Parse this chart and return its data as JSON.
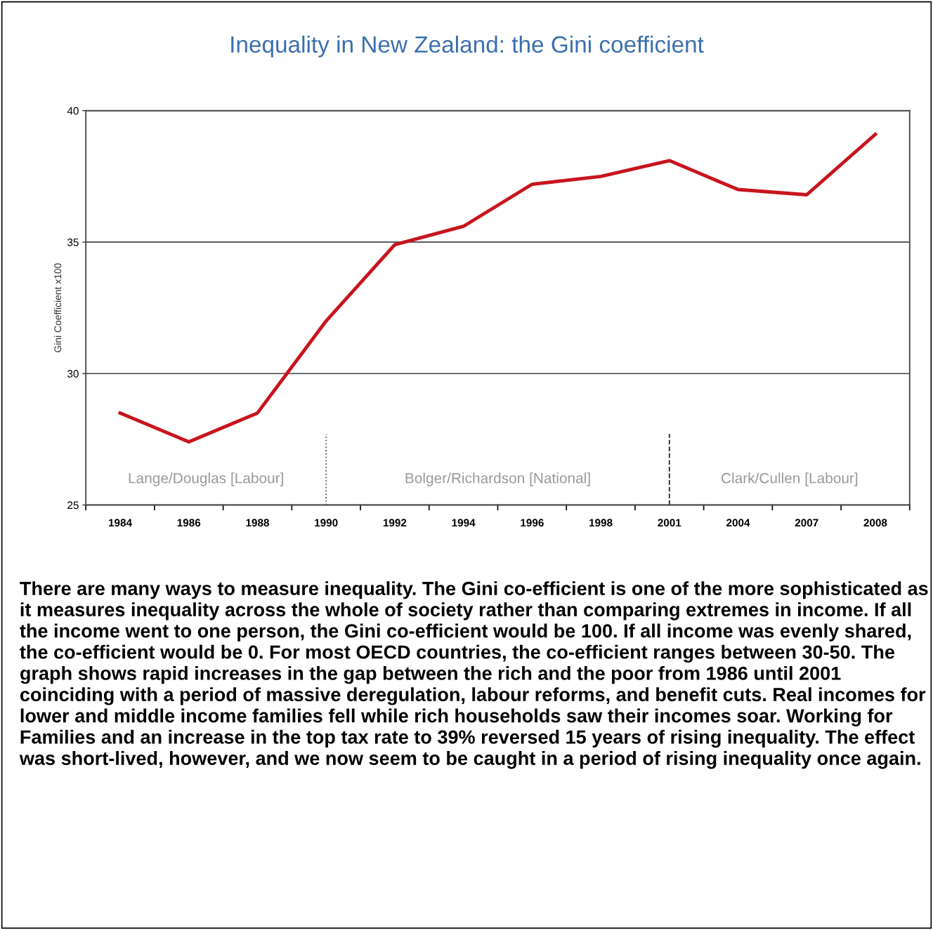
{
  "chart_data": {
    "type": "line",
    "title": "Inequality in New Zealand: the Gini coefficient",
    "ylabel": "Gini Coefficient x100",
    "categories": [
      "1984",
      "1986",
      "1988",
      "1990",
      "1992",
      "1994",
      "1996",
      "1998",
      "2001",
      "2004",
      "2007",
      "2008"
    ],
    "series": [
      {
        "color": "#c8141e",
        "values": [
          28.5,
          27.4,
          28.5,
          32.0,
          34.9,
          35.6,
          37.2,
          37.5,
          38.1,
          37.0,
          36.8,
          39.1
        ]
      }
    ],
    "ylim": [
      25,
      40
    ],
    "yticks": [
      25,
      30,
      35,
      40
    ],
    "grid": "y",
    "legend": false,
    "marker": "none",
    "line_style": "solid",
    "ref_lines": [
      {
        "axis": "x",
        "value": "1990",
        "color": "#555555",
        "line_style": "dotted"
      },
      {
        "axis": "x",
        "value": "2001",
        "color": "#222222",
        "line_style": "dashed"
      }
    ],
    "annotations": [
      "Lange/Douglas [Labour]",
      "Bolger/Richardson [National]",
      "Clark/Cullen [Labour]",
      "There are many ways to measure inequality. The Gini co-efficient is one of the more sophisticated as it measures inequality across the whole of society rather than comparing extremes in income. If all the income went to one person, the Gini co-efficient would be 100. If all income was evenly shared, the co-efficient would be 0. For most OECD countries, the co-efficient ranges between 30-50. The graph shows rapid increases in the gap between the rich and the poor from 1986 until 2001 coinciding with a period of massive deregulation, labour reforms, and benefit cuts. Real incomes for lower and middle income families fell while rich households saw their incomes soar. Working for Families and an increase in the top tax rate to 39% reversed 15 years of rising inequality. The effect was short-lived, however, and we now seem to be caught in a period of rising inequality once again."
    ]
  }
}
